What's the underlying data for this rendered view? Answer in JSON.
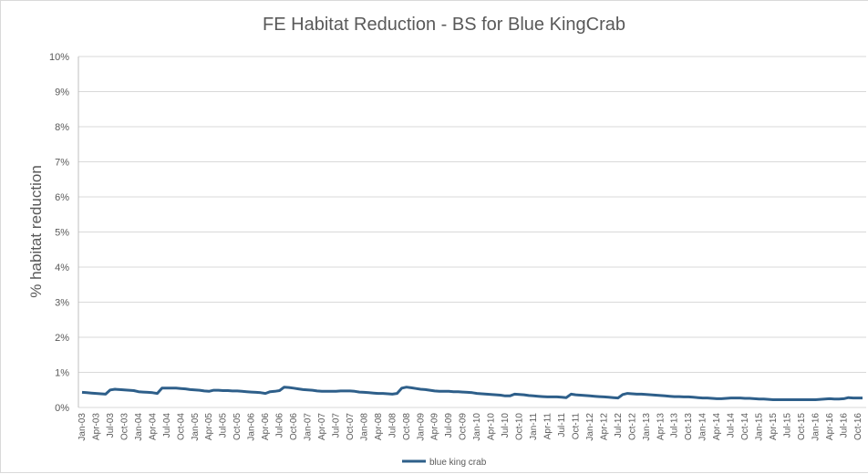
{
  "chart_data": {
    "type": "line",
    "title": "FE Habitat Reduction - BS for Blue KingCrab",
    "y_label": "% habitat reduction",
    "categories": [
      "Jan-03",
      null,
      null,
      "Apr-03",
      null,
      null,
      "Jul-03",
      null,
      null,
      "Oct-03",
      null,
      null,
      "Jan-04",
      null,
      null,
      "Apr-04",
      null,
      null,
      "Jul-04",
      null,
      null,
      "Oct-04",
      null,
      null,
      "Jan-05",
      null,
      null,
      "Apr-05",
      null,
      null,
      "Jul-05",
      null,
      null,
      "Oct-05",
      null,
      null,
      "Jan-06",
      null,
      null,
      "Apr-06",
      null,
      null,
      "Jul-06",
      null,
      null,
      "Oct-06",
      null,
      null,
      "Jan-07",
      null,
      null,
      "Apr-07",
      null,
      null,
      "Jul-07",
      null,
      null,
      "Oct-07",
      null,
      null,
      "Jan-08",
      null,
      null,
      "Apr-08",
      null,
      null,
      "Jul-08",
      null,
      null,
      "Oct-08",
      null,
      null,
      "Jan-09",
      null,
      null,
      "Apr-09",
      null,
      null,
      "Jul-09",
      null,
      null,
      "Oct-09",
      null,
      null,
      "Jan-10",
      null,
      null,
      "Apr-10",
      null,
      null,
      "Jul-10",
      null,
      null,
      "Oct-10",
      null,
      null,
      "Jan-11",
      null,
      null,
      "Apr-11",
      null,
      null,
      "Jul-11",
      null,
      null,
      "Oct-11",
      null,
      null,
      "Jan-12",
      null,
      null,
      "Apr-12",
      null,
      null,
      "Jul-12",
      null,
      null,
      "Oct-12",
      null,
      null,
      "Jan-13",
      null,
      null,
      "Apr-13",
      null,
      null,
      "Jul-13",
      null,
      null,
      "Oct-13",
      null,
      null,
      "Jan-14",
      null,
      null,
      "Apr-14",
      null,
      null,
      "Jul-14",
      null,
      null,
      "Oct-14",
      null,
      null,
      "Jan-15",
      null,
      null,
      "Apr-15",
      null,
      null,
      "Jul-15",
      null,
      null,
      "Oct-15",
      null,
      null,
      "Jan-16",
      null,
      null,
      "Apr-16",
      null,
      null,
      "Jul-16",
      null,
      null,
      "Oct-16",
      null
    ],
    "series": [
      {
        "name": "blue king crab",
        "color": "#2e5f8a",
        "values": [
          0.43,
          0.42,
          0.41,
          0.4,
          0.39,
          0.38,
          0.5,
          0.52,
          0.51,
          0.5,
          0.49,
          0.48,
          0.45,
          0.44,
          0.43,
          0.42,
          0.4,
          0.55,
          0.55,
          0.55,
          0.55,
          0.54,
          0.53,
          0.51,
          0.5,
          0.49,
          0.47,
          0.46,
          0.49,
          0.49,
          0.48,
          0.48,
          0.47,
          0.47,
          0.46,
          0.45,
          0.44,
          0.43,
          0.42,
          0.4,
          0.45,
          0.46,
          0.48,
          0.58,
          0.57,
          0.55,
          0.53,
          0.51,
          0.5,
          0.49,
          0.47,
          0.46,
          0.46,
          0.46,
          0.46,
          0.47,
          0.47,
          0.47,
          0.46,
          0.44,
          0.43,
          0.42,
          0.41,
          0.4,
          0.4,
          0.39,
          0.38,
          0.4,
          0.55,
          0.58,
          0.56,
          0.54,
          0.52,
          0.51,
          0.49,
          0.47,
          0.46,
          0.46,
          0.46,
          0.45,
          0.45,
          0.44,
          0.43,
          0.42,
          0.4,
          0.39,
          0.38,
          0.37,
          0.36,
          0.35,
          0.33,
          0.33,
          0.38,
          0.37,
          0.36,
          0.34,
          0.33,
          0.32,
          0.31,
          0.3,
          0.3,
          0.3,
          0.29,
          0.28,
          0.38,
          0.36,
          0.35,
          0.34,
          0.33,
          0.32,
          0.31,
          0.3,
          0.29,
          0.28,
          0.27,
          0.37,
          0.4,
          0.39,
          0.38,
          0.38,
          0.37,
          0.36,
          0.35,
          0.34,
          0.33,
          0.32,
          0.31,
          0.31,
          0.3,
          0.3,
          0.29,
          0.28,
          0.27,
          0.27,
          0.26,
          0.25,
          0.25,
          0.26,
          0.27,
          0.27,
          0.27,
          0.26,
          0.26,
          0.25,
          0.24,
          0.24,
          0.23,
          0.22,
          0.22,
          0.22,
          0.22,
          0.22,
          0.22,
          0.22,
          0.22,
          0.22,
          0.22,
          0.23,
          0.24,
          0.25,
          0.24,
          0.24,
          0.25,
          0.28,
          0.27,
          0.27,
          0.27
        ]
      }
    ],
    "ylim": [
      0,
      10
    ],
    "yticks": [
      {
        "value": 0,
        "label": "0%"
      },
      {
        "value": 1,
        "label": "1%"
      },
      {
        "value": 2,
        "label": "2%"
      },
      {
        "value": 3,
        "label": "3%"
      },
      {
        "value": 4,
        "label": "4%"
      },
      {
        "value": 5,
        "label": "5%"
      },
      {
        "value": 6,
        "label": "6%"
      },
      {
        "value": 7,
        "label": "7%"
      },
      {
        "value": 8,
        "label": "8%"
      },
      {
        "value": 9,
        "label": "9%"
      },
      {
        "value": 10,
        "label": "10%"
      }
    ],
    "grid": true,
    "legend": "bottom"
  }
}
